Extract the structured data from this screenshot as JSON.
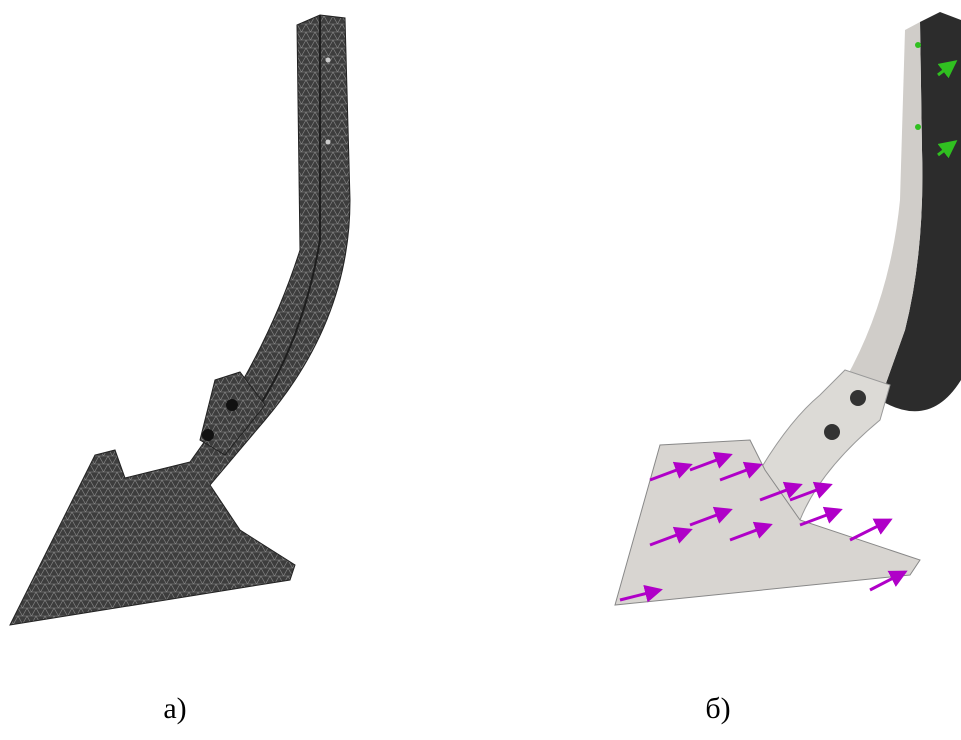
{
  "figure": {
    "panels": [
      {
        "label": "а)"
      },
      {
        "label": "б)"
      }
    ]
  }
}
